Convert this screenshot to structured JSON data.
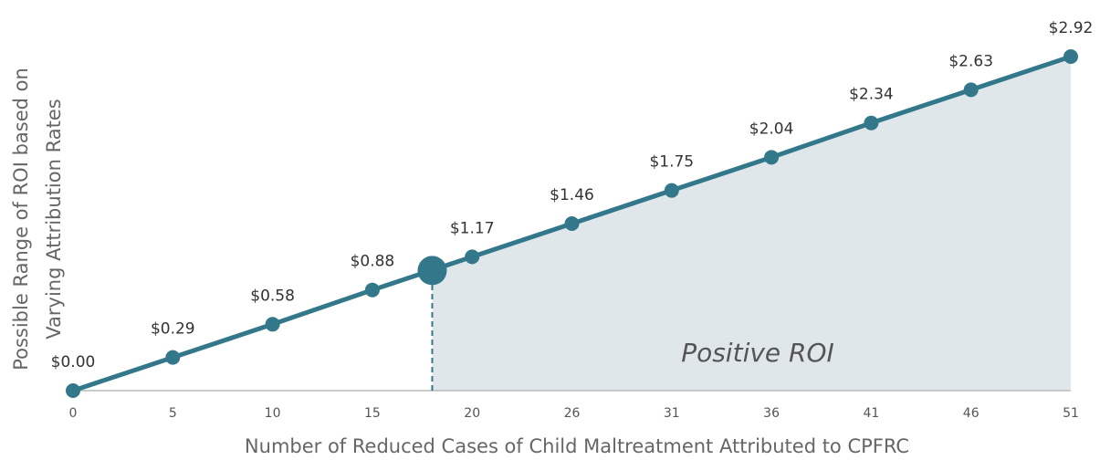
{
  "chart_data": {
    "type": "line",
    "x_label": "Number of Reduced Cases of Child Maltreatment Attributed to CPFRC",
    "y_label": [
      "Possible Range of ROI based on",
      "Varying Attribution Rates"
    ],
    "categories": [
      0,
      5,
      10,
      15,
      20,
      26,
      31,
      36,
      41,
      46,
      51
    ],
    "series": [
      {
        "color": "#33788a",
        "values": [
          0.0,
          0.29,
          0.58,
          0.88,
          1.17,
          1.46,
          1.75,
          2.04,
          2.34,
          2.63,
          2.92
        ],
        "value_labels": [
          "$0.00",
          "$0.29",
          "$0.58",
          "$0.88",
          "$1.17",
          "$1.46",
          "$1.75",
          "$2.04",
          "$2.34",
          "$2.63",
          "$2.92"
        ]
      }
    ],
    "break_even": {
      "x": 18,
      "value": 1.05
    },
    "annotation": "Positive ROI",
    "area_color": "#dfe7eb",
    "ylim": [
      0,
      3
    ]
  }
}
